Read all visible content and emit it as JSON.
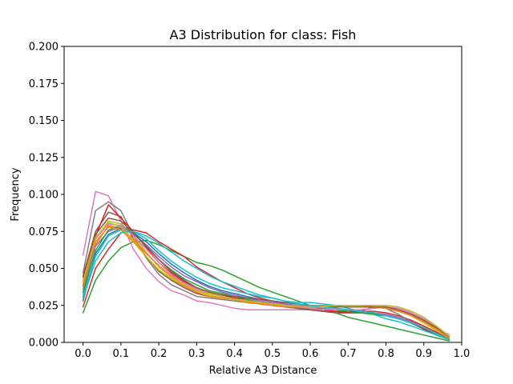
{
  "chart_data": {
    "type": "line",
    "title": "A3 Distribution for class: Fish",
    "xlabel": "Relative A3 Distance",
    "ylabel": "Frequency",
    "xlim": [
      -0.05,
      1.0
    ],
    "ylim": [
      0.0,
      0.2
    ],
    "xticks": [
      0.0,
      0.1,
      0.2,
      0.3,
      0.4,
      0.5,
      0.6,
      0.7,
      0.8,
      0.9,
      1.0
    ],
    "xtick_labels": [
      "0.0",
      "0.1",
      "0.2",
      "0.3",
      "0.4",
      "0.5",
      "0.6",
      "0.7",
      "0.8",
      "0.9",
      "1.0"
    ],
    "yticks": [
      0.0,
      0.025,
      0.05,
      0.075,
      0.1,
      0.125,
      0.15,
      0.175,
      0.2
    ],
    "ytick_labels": [
      "0.000",
      "0.025",
      "0.050",
      "0.075",
      "0.100",
      "0.125",
      "0.150",
      "0.175",
      "0.200"
    ],
    "grid": false,
    "x": [
      0.0,
      0.033,
      0.067,
      0.1,
      0.133,
      0.167,
      0.2,
      0.233,
      0.267,
      0.3,
      0.333,
      0.367,
      0.4,
      0.433,
      0.467,
      0.5,
      0.533,
      0.567,
      0.6,
      0.633,
      0.667,
      0.7,
      0.733,
      0.767,
      0.8,
      0.833,
      0.867,
      0.9,
      0.933,
      0.967
    ],
    "series": [
      {
        "color": "#2ca02c",
        "values": [
          0.02,
          0.042,
          0.055,
          0.064,
          0.068,
          0.069,
          0.066,
          0.062,
          0.058,
          0.054,
          0.052,
          0.049,
          0.045,
          0.041,
          0.037,
          0.034,
          0.031,
          0.028,
          0.025,
          0.022,
          0.02,
          0.017,
          0.015,
          0.013,
          0.011,
          0.009,
          0.007,
          0.005,
          0.003,
          0.001
        ]
      },
      {
        "color": "#d62728",
        "values": [
          0.024,
          0.05,
          0.063,
          0.074,
          0.076,
          0.074,
          0.068,
          0.063,
          0.058,
          0.051,
          0.046,
          0.041,
          0.037,
          0.033,
          0.03,
          0.028,
          0.026,
          0.024,
          0.022,
          0.021,
          0.021,
          0.021,
          0.021,
          0.021,
          0.02,
          0.018,
          0.015,
          0.011,
          0.007,
          0.002
        ]
      },
      {
        "color": "#e377c2",
        "values": [
          0.059,
          0.102,
          0.099,
          0.082,
          0.063,
          0.05,
          0.041,
          0.035,
          0.032,
          0.028,
          0.027,
          0.025,
          0.023,
          0.022,
          0.022,
          0.022,
          0.022,
          0.022,
          0.022,
          0.022,
          0.022,
          0.022,
          0.022,
          0.023,
          0.024,
          0.022,
          0.019,
          0.015,
          0.01,
          0.005
        ]
      },
      {
        "color": "#7f7f7f",
        "values": [
          0.047,
          0.089,
          0.095,
          0.089,
          0.072,
          0.057,
          0.046,
          0.039,
          0.035,
          0.031,
          0.03,
          0.029,
          0.028,
          0.027,
          0.026,
          0.025,
          0.024,
          0.023,
          0.022,
          0.021,
          0.02,
          0.02,
          0.021,
          0.024,
          0.023,
          0.019,
          0.014,
          0.009,
          0.005,
          0.002
        ]
      },
      {
        "color": "#8c564b",
        "values": [
          0.045,
          0.075,
          0.088,
          0.085,
          0.07,
          0.058,
          0.048,
          0.042,
          0.037,
          0.033,
          0.031,
          0.03,
          0.029,
          0.027,
          0.026,
          0.025,
          0.024,
          0.023,
          0.022,
          0.021,
          0.02,
          0.02,
          0.02,
          0.019,
          0.018,
          0.016,
          0.013,
          0.009,
          0.005,
          0.002
        ]
      },
      {
        "color": "#d62728",
        "values": [
          0.03,
          0.072,
          0.093,
          0.084,
          0.075,
          0.064,
          0.054,
          0.047,
          0.041,
          0.037,
          0.034,
          0.032,
          0.03,
          0.029,
          0.027,
          0.026,
          0.025,
          0.024,
          0.023,
          0.022,
          0.021,
          0.02,
          0.02,
          0.019,
          0.018,
          0.016,
          0.013,
          0.009,
          0.005,
          0.002
        ]
      },
      {
        "color": "#bcbd22",
        "values": [
          0.04,
          0.07,
          0.082,
          0.08,
          0.072,
          0.061,
          0.051,
          0.044,
          0.039,
          0.035,
          0.032,
          0.03,
          0.029,
          0.028,
          0.027,
          0.026,
          0.025,
          0.024,
          0.024,
          0.024,
          0.024,
          0.024,
          0.024,
          0.024,
          0.023,
          0.021,
          0.018,
          0.013,
          0.008,
          0.003
        ]
      },
      {
        "color": "#ff7f0e",
        "values": [
          0.036,
          0.066,
          0.079,
          0.077,
          0.07,
          0.06,
          0.052,
          0.045,
          0.04,
          0.036,
          0.033,
          0.031,
          0.029,
          0.027,
          0.026,
          0.025,
          0.024,
          0.024,
          0.024,
          0.024,
          0.024,
          0.024,
          0.024,
          0.024,
          0.024,
          0.023,
          0.02,
          0.015,
          0.009,
          0.003
        ]
      },
      {
        "color": "#1f77b4",
        "values": [
          0.028,
          0.06,
          0.073,
          0.077,
          0.074,
          0.068,
          0.06,
          0.053,
          0.047,
          0.042,
          0.038,
          0.035,
          0.033,
          0.031,
          0.029,
          0.028,
          0.027,
          0.026,
          0.025,
          0.024,
          0.023,
          0.022,
          0.021,
          0.02,
          0.018,
          0.016,
          0.013,
          0.01,
          0.006,
          0.002
        ]
      },
      {
        "color": "#17becf",
        "values": [
          0.032,
          0.058,
          0.072,
          0.076,
          0.075,
          0.07,
          0.062,
          0.055,
          0.049,
          0.044,
          0.04,
          0.037,
          0.035,
          0.033,
          0.031,
          0.03,
          0.028,
          0.027,
          0.027,
          0.026,
          0.025,
          0.023,
          0.021,
          0.019,
          0.016,
          0.014,
          0.011,
          0.008,
          0.005,
          0.002
        ]
      },
      {
        "color": "#9467bd",
        "values": [
          0.038,
          0.065,
          0.075,
          0.078,
          0.073,
          0.066,
          0.058,
          0.051,
          0.045,
          0.041,
          0.037,
          0.034,
          0.032,
          0.03,
          0.028,
          0.027,
          0.026,
          0.025,
          0.024,
          0.023,
          0.022,
          0.022,
          0.021,
          0.02,
          0.019,
          0.017,
          0.014,
          0.01,
          0.006,
          0.002
        ]
      },
      {
        "color": "#2ca02c",
        "values": [
          0.034,
          0.062,
          0.076,
          0.079,
          0.074,
          0.065,
          0.056,
          0.049,
          0.043,
          0.039,
          0.035,
          0.033,
          0.031,
          0.029,
          0.027,
          0.026,
          0.025,
          0.024,
          0.023,
          0.022,
          0.022,
          0.021,
          0.02,
          0.019,
          0.018,
          0.016,
          0.013,
          0.01,
          0.006,
          0.002
        ]
      },
      {
        "color": "#e377c2",
        "values": [
          0.042,
          0.07,
          0.08,
          0.079,
          0.072,
          0.063,
          0.054,
          0.046,
          0.04,
          0.036,
          0.033,
          0.031,
          0.029,
          0.028,
          0.027,
          0.026,
          0.025,
          0.024,
          0.023,
          0.022,
          0.022,
          0.022,
          0.022,
          0.023,
          0.024,
          0.023,
          0.02,
          0.016,
          0.011,
          0.004
        ]
      },
      {
        "color": "#ff7f0e",
        "values": [
          0.039,
          0.068,
          0.078,
          0.076,
          0.068,
          0.058,
          0.049,
          0.043,
          0.038,
          0.034,
          0.031,
          0.03,
          0.029,
          0.028,
          0.027,
          0.026,
          0.025,
          0.025,
          0.025,
          0.025,
          0.025,
          0.025,
          0.025,
          0.024,
          0.023,
          0.021,
          0.018,
          0.014,
          0.009,
          0.003
        ]
      },
      {
        "color": "#8c564b",
        "values": [
          0.044,
          0.073,
          0.084,
          0.082,
          0.074,
          0.065,
          0.056,
          0.048,
          0.042,
          0.037,
          0.034,
          0.032,
          0.031,
          0.03,
          0.029,
          0.028,
          0.027,
          0.026,
          0.025,
          0.024,
          0.024,
          0.024,
          0.024,
          0.024,
          0.024,
          0.022,
          0.019,
          0.015,
          0.01,
          0.004
        ]
      },
      {
        "color": "#17becf",
        "values": [
          0.03,
          0.055,
          0.068,
          0.074,
          0.075,
          0.072,
          0.067,
          0.061,
          0.055,
          0.05,
          0.045,
          0.041,
          0.038,
          0.035,
          0.032,
          0.03,
          0.028,
          0.026,
          0.025,
          0.024,
          0.023,
          0.022,
          0.021,
          0.02,
          0.018,
          0.016,
          0.013,
          0.01,
          0.006,
          0.002
        ]
      },
      {
        "color": "#bcbd22",
        "values": [
          0.041,
          0.071,
          0.081,
          0.078,
          0.069,
          0.058,
          0.049,
          0.043,
          0.039,
          0.035,
          0.033,
          0.031,
          0.029,
          0.028,
          0.027,
          0.026,
          0.025,
          0.024,
          0.024,
          0.024,
          0.025,
          0.025,
          0.025,
          0.025,
          0.025,
          0.024,
          0.021,
          0.017,
          0.011,
          0.004
        ]
      }
    ]
  }
}
